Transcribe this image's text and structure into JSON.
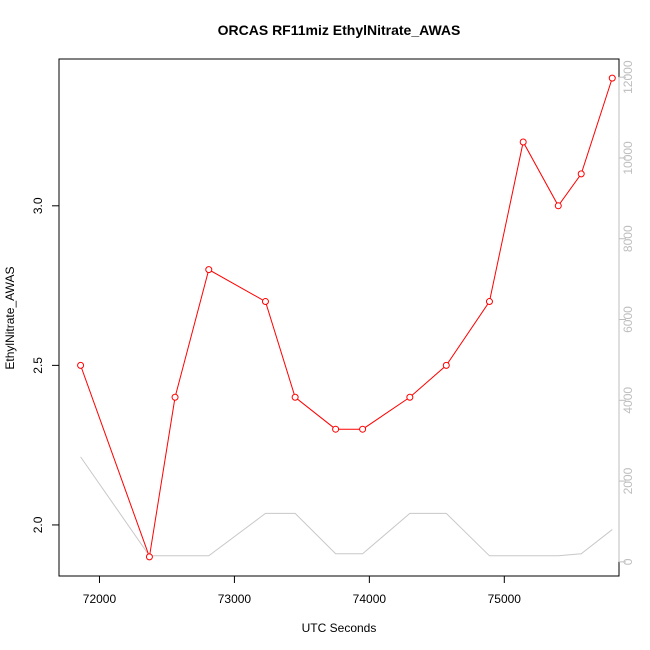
{
  "chart_data": {
    "type": "line",
    "title": "ORCAS RF11miz EthylNitrate_AWAS",
    "xlabel": "UTC Seconds",
    "ylabel": "EthylNitrate_AWAS",
    "xlim": [
      71700,
      75850
    ],
    "ylim": [
      1.84,
      3.46
    ],
    "y2lim": [
      -350,
      12450
    ],
    "x_ticks": [
      72000,
      73000,
      74000,
      75000
    ],
    "x_tick_labels": [
      "72000",
      "73000",
      "74000",
      "75000"
    ],
    "y_ticks": [
      2.0,
      2.5,
      3.0
    ],
    "y_tick_labels": [
      "2.0",
      "2.5",
      "3.0"
    ],
    "y2_ticks": [
      0,
      2000,
      4000,
      6000,
      8000,
      10000,
      12000
    ],
    "y2_tick_labels": [
      "0",
      "2000",
      "4000",
      "6000",
      "8000",
      "10000",
      "12000"
    ],
    "grid": false,
    "series": [
      {
        "axis": "left",
        "color": "#ff0000",
        "markers": "open-circle",
        "x": [
          71860,
          72370,
          72560,
          72810,
          73230,
          73450,
          73750,
          73950,
          74300,
          74570,
          74890,
          75140,
          75400,
          75570,
          75800
        ],
        "y": [
          2.5,
          1.9,
          2.4,
          2.8,
          2.7,
          2.4,
          2.3,
          2.3,
          2.4,
          2.5,
          2.7,
          3.2,
          3.0,
          3.1,
          3.4
        ]
      },
      {
        "axis": "right",
        "color": "#c8c8c8",
        "markers": "none",
        "x": [
          71860,
          72370,
          72560,
          72810,
          73230,
          73450,
          73750,
          73950,
          74300,
          74570,
          74890,
          75140,
          75400,
          75570,
          75800
        ],
        "y": [
          2600,
          150,
          150,
          150,
          1200,
          1200,
          200,
          200,
          1200,
          1200,
          150,
          150,
          150,
          200,
          800
        ]
      }
    ]
  }
}
